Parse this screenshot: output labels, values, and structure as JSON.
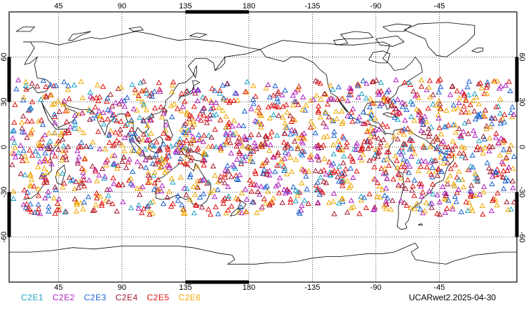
{
  "map": {
    "projection": "equirectangular",
    "center_longitude": 180,
    "lon_range": [
      10,
      370
    ],
    "lat_range": [
      -90,
      90
    ],
    "grid": true,
    "land_fill": "none",
    "coastline_color": "#000000"
  },
  "axes": {
    "top_labels": [
      "45",
      "90",
      "135",
      "180",
      "-135",
      "-90",
      "-45"
    ],
    "bottom_labels": [
      "45",
      "90",
      "135",
      "180",
      "-135",
      "-90",
      "-45"
    ],
    "left_labels": [
      "60",
      "30",
      "0",
      "-30",
      "-60"
    ],
    "right_labels": [
      "60",
      "30",
      "0",
      "-30",
      "-60"
    ]
  },
  "legend": {
    "items": [
      {
        "name": "C2E1",
        "color": "#1aa3c4"
      },
      {
        "name": "C2E2",
        "color": "#b020c0"
      },
      {
        "name": "C2E3",
        "color": "#1a60d0"
      },
      {
        "name": "C2E4",
        "color": "#a01a30"
      },
      {
        "name": "C2E5",
        "color": "#e01010"
      },
      {
        "name": "C2E6",
        "color": "#f0a800"
      }
    ]
  },
  "product_label": "UCARwet2.2025-04-30",
  "observations": {
    "marker": "open-triangle",
    "count_per_series": [
      130,
      260,
      230,
      230,
      410,
      370
    ],
    "lat_range": [
      -45,
      45
    ],
    "lon_range": [
      10,
      370
    ]
  }
}
